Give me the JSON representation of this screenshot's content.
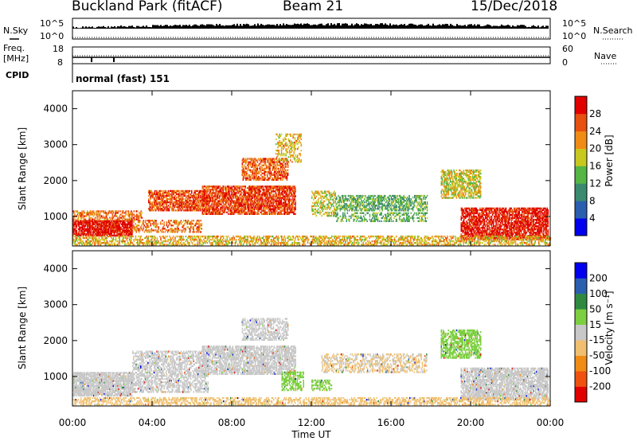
{
  "header": {
    "station": "Buckland Park (fitACF)",
    "beam": "Beam 21",
    "date": "15/Dec/2018"
  },
  "side_labels": {
    "nsky": "N.Sky",
    "nsky_top": "10^5",
    "nsky_bottom": "10^0",
    "nsearch": "N.Search",
    "nsearch_top": "10^5",
    "nsearch_bottom": "10^0",
    "freq_line1": "Freq.",
    "freq_line2": "[MHz]",
    "freq_top": "18",
    "freq_bottom": "8",
    "nave": "Nave",
    "nave_top": "60",
    "nave_bottom": "0",
    "cpid": "CPID",
    "cpid_value": "normal (fast) 151"
  },
  "chart_data": [
    {
      "type": "heatmap",
      "panel": "power",
      "ylabel": "Slant Range [km]",
      "xlabel": "",
      "xlim_hours": [
        0,
        24
      ],
      "ylim_km": [
        180,
        4500
      ],
      "y_ticks": [
        "1000",
        "2000",
        "3000",
        "4000"
      ],
      "colorbar": {
        "label": "Power [dB]",
        "tick_labels": [
          "4",
          "8",
          "12",
          "16",
          "20",
          "24",
          "28"
        ],
        "colors": [
          "#0000ee",
          "#2a5fb0",
          "#3b8a70",
          "#55b545",
          "#c8c81e",
          "#f08c14",
          "#e85010",
          "#e00000"
        ],
        "range": [
          0,
          32
        ]
      },
      "echo_regions": [
        {
          "t0": 0.0,
          "t1": 3.0,
          "r0": 450,
          "r1": 900,
          "level": 30,
          "density": 0.85
        },
        {
          "t0": 0.0,
          "t1": 3.5,
          "r0": 900,
          "r1": 1150,
          "level": 24,
          "density": 0.6
        },
        {
          "t0": 3.0,
          "t1": 6.5,
          "r0": 550,
          "r1": 900,
          "level": 24,
          "density": 0.45
        },
        {
          "t0": 3.8,
          "t1": 6.8,
          "r0": 1150,
          "r1": 1700,
          "level": 26,
          "density": 0.7
        },
        {
          "t0": 6.5,
          "t1": 11.2,
          "r0": 1050,
          "r1": 1850,
          "level": 27,
          "density": 0.75
        },
        {
          "t0": 8.5,
          "t1": 10.8,
          "r0": 2000,
          "r1": 2600,
          "level": 25,
          "density": 0.6
        },
        {
          "t0": 10.2,
          "t1": 11.5,
          "r0": 2500,
          "r1": 3300,
          "level": 20,
          "density": 0.4
        },
        {
          "t0": 12.0,
          "t1": 13.2,
          "r0": 1000,
          "r1": 1700,
          "level": 18,
          "density": 0.45
        },
        {
          "t0": 13.2,
          "t1": 17.8,
          "r0": 1150,
          "r1": 1600,
          "level": 13,
          "density": 0.55
        },
        {
          "t0": 13.2,
          "t1": 17.8,
          "r0": 850,
          "r1": 1100,
          "level": 13,
          "density": 0.4
        },
        {
          "t0": 18.5,
          "t1": 20.5,
          "r0": 1500,
          "r1": 2300,
          "level": 18,
          "density": 0.6
        },
        {
          "t0": 19.5,
          "t1": 23.9,
          "r0": 350,
          "r1": 1250,
          "level": 29,
          "density": 0.75
        },
        {
          "t0": 0.0,
          "t1": 24.0,
          "r0": 200,
          "r1": 450,
          "level": 20,
          "density": 0.5
        }
      ]
    },
    {
      "type": "heatmap",
      "panel": "velocity",
      "ylabel": "Slant Range [km]",
      "xlabel": "Time UT",
      "xlim_hours": [
        0,
        24
      ],
      "ylim_km": [
        180,
        4500
      ],
      "y_ticks": [
        "1000",
        "2000",
        "3000",
        "4000"
      ],
      "x_ticks": [
        "00:00",
        "04:00",
        "08:00",
        "12:00",
        "16:00",
        "20:00",
        "00:00"
      ],
      "colorbar": {
        "label": "Velocity [m s⁻¹]",
        "tick_labels": [
          "-200",
          "-100",
          "-50",
          "-15",
          "15",
          "50",
          "100",
          "200"
        ],
        "colors": [
          "#e00000",
          "#f05010",
          "#f08c14",
          "#f0c070",
          "#c8c8c8",
          "#7ccf40",
          "#2f8a40",
          "#2a5fb0",
          "#0000ee"
        ],
        "range": [
          -250,
          250
        ]
      },
      "echo_regions": [
        {
          "t0": 0.0,
          "t1": 3.0,
          "r0": 450,
          "r1": 1100,
          "level": 0,
          "density": 0.85
        },
        {
          "t0": 3.0,
          "t1": 6.8,
          "r0": 550,
          "r1": 1700,
          "level": 0,
          "density": 0.55
        },
        {
          "t0": 6.5,
          "t1": 11.2,
          "r0": 1050,
          "r1": 1850,
          "level": 0,
          "density": 0.7
        },
        {
          "t0": 8.5,
          "t1": 10.8,
          "r0": 2000,
          "r1": 2600,
          "level": 0,
          "density": 0.55
        },
        {
          "t0": 10.5,
          "t1": 11.6,
          "r0": 600,
          "r1": 1100,
          "level": 40,
          "density": 0.5
        },
        {
          "t0": 12.5,
          "t1": 17.8,
          "r0": 1100,
          "r1": 1600,
          "level": -30,
          "density": 0.45
        },
        {
          "t0": 12.0,
          "t1": 13.0,
          "r0": 600,
          "r1": 900,
          "level": 40,
          "density": 0.45
        },
        {
          "t0": 18.5,
          "t1": 20.5,
          "r0": 1500,
          "r1": 2300,
          "level": 40,
          "density": 0.6
        },
        {
          "t0": 19.5,
          "t1": 23.9,
          "r0": 350,
          "r1": 1250,
          "level": 0,
          "density": 0.75
        },
        {
          "t0": 0.0,
          "t1": 24.0,
          "r0": 200,
          "r1": 420,
          "level": -40,
          "density": 0.5
        }
      ]
    }
  ]
}
